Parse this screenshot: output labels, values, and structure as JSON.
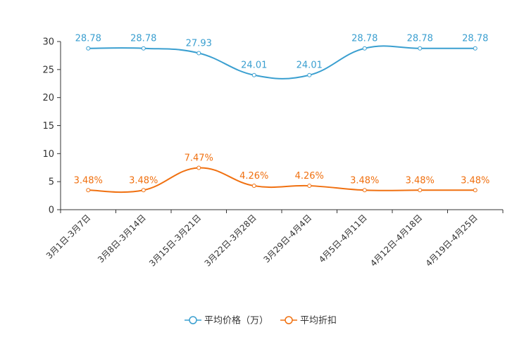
{
  "chart_data": {
    "type": "line",
    "title": "",
    "xlabel": "",
    "ylabel": "",
    "ylim": [
      0,
      30
    ],
    "yticks": [
      0,
      5,
      10,
      15,
      20,
      25,
      30
    ],
    "smooth": true,
    "legend_position": "bottom-center",
    "categories": [
      "3月1日-3月7日",
      "3月8日-3月14日",
      "3月15日-3月21日",
      "3月22日-3月28日",
      "3月29日-4月4日",
      "4月5日-4月11日",
      "4月12日-4月18日",
      "4月19日-4月25日"
    ],
    "series": [
      {
        "name": "平均价格（万）",
        "color": "#3a9fd0",
        "values": [
          28.78,
          28.78,
          27.93,
          24.01,
          24.01,
          28.78,
          28.78,
          28.78
        ],
        "labels": [
          "28.78",
          "28.78",
          "27.93",
          "24.01",
          "24.01",
          "28.78",
          "28.78",
          "28.78"
        ]
      },
      {
        "name": "平均折扣",
        "color": "#f07010",
        "values": [
          3.48,
          3.48,
          7.47,
          4.26,
          4.26,
          3.48,
          3.48,
          3.48
        ],
        "labels": [
          "3.48%",
          "3.48%",
          "7.47%",
          "4.26%",
          "4.26%",
          "3.48%",
          "3.48%",
          "3.48%"
        ]
      }
    ]
  }
}
